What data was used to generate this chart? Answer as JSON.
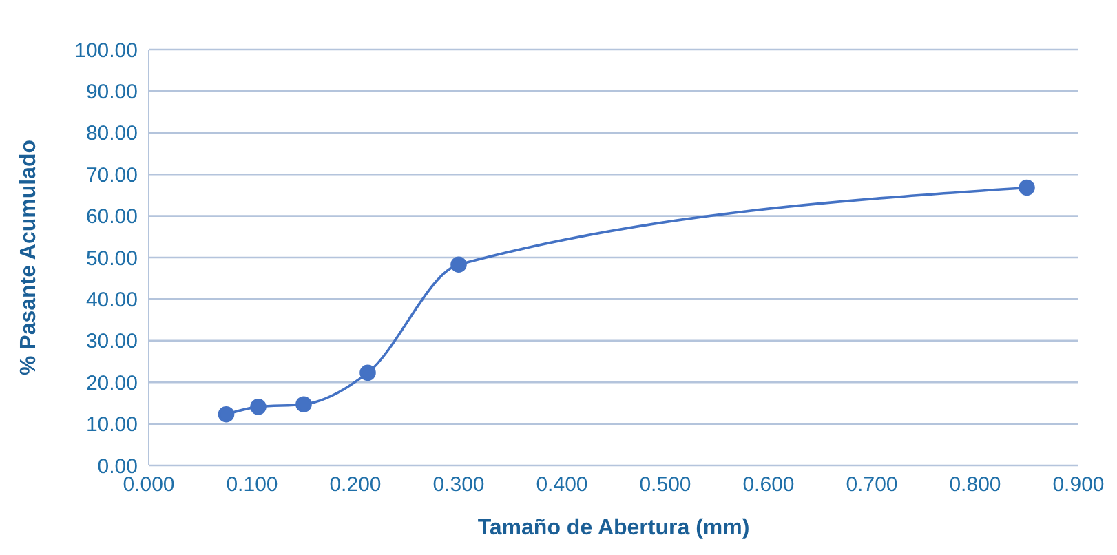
{
  "chart_data": {
    "type": "line",
    "xlabel": "Tamaño de Abertura (mm)",
    "ylabel": "% Pasante Acumulado",
    "x": [
      0.075,
      0.106,
      0.15,
      0.212,
      0.3,
      0.85
    ],
    "series": [
      {
        "color": "#4472c4",
        "values": [
          12.3,
          14.1,
          14.7,
          22.3,
          48.3,
          66.8
        ]
      }
    ],
    "xlim": [
      0,
      0.9
    ],
    "xticks": [
      {
        "value": 0,
        "label": "0.000"
      },
      {
        "value": 0.1,
        "label": "0.100"
      },
      {
        "value": 0.2,
        "label": "0.200"
      },
      {
        "value": 0.3,
        "label": "0.300"
      },
      {
        "value": 0.4,
        "label": "0.400"
      },
      {
        "value": 0.5,
        "label": "0.500"
      },
      {
        "value": 0.6,
        "label": "0.600"
      },
      {
        "value": 0.7,
        "label": "0.700"
      },
      {
        "value": 0.8,
        "label": "0.800"
      },
      {
        "value": 0.9,
        "label": "0.900"
      }
    ],
    "ylim": [
      0,
      100
    ],
    "yticks": [
      {
        "value": 0,
        "label": "0.00"
      },
      {
        "value": 10,
        "label": "10.00"
      },
      {
        "value": 20,
        "label": "20.00"
      },
      {
        "value": 30,
        "label": "30.00"
      },
      {
        "value": 40,
        "label": "40.00"
      },
      {
        "value": 50,
        "label": "50.00"
      },
      {
        "value": 60,
        "label": "60.00"
      },
      {
        "value": 70,
        "label": "70.00"
      },
      {
        "value": 80,
        "label": "80.00"
      },
      {
        "value": 90,
        "label": "90.00"
      },
      {
        "value": 100,
        "label": "100.00"
      }
    ],
    "grid": "y",
    "marker": "circle",
    "line_style": "solid"
  }
}
